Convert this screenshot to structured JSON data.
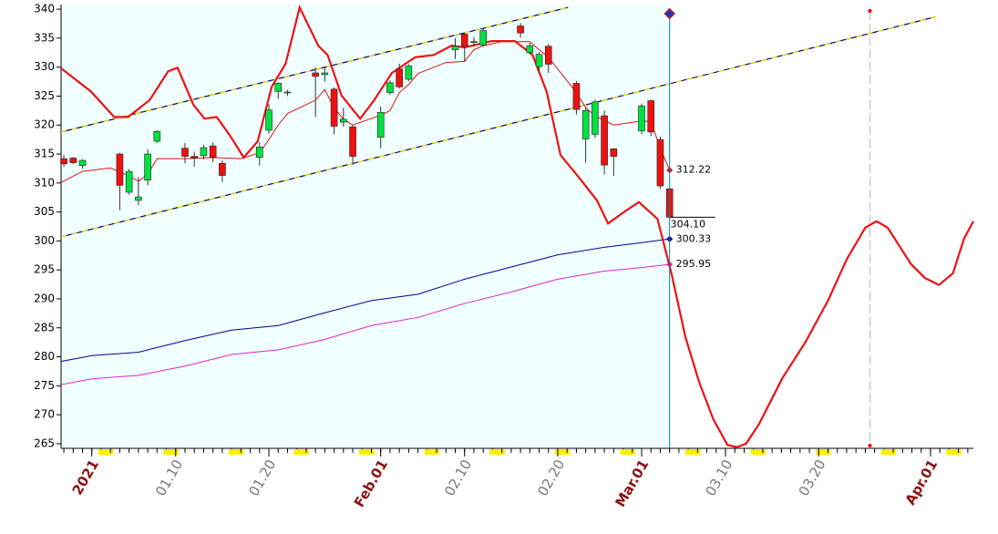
{
  "chart_data": {
    "type": "candlestick",
    "xlim": [
      -3.3,
      94.6
    ],
    "ylim": [
      264.2,
      340.8
    ],
    "yticks": [
      265,
      270,
      275,
      280,
      285,
      290,
      295,
      300,
      305,
      310,
      315,
      320,
      325,
      330,
      335,
      340
    ],
    "xticks": [
      {
        "value": 0,
        "label": "2021"
      },
      {
        "value": 9,
        "label": "01.10"
      },
      {
        "value": 19,
        "label": "01.20"
      },
      {
        "value": 31,
        "label": "Feb.01"
      },
      {
        "value": 40,
        "label": "02.10"
      },
      {
        "value": 50,
        "label": "02.20"
      },
      {
        "value": 59,
        "label": "Mar.01"
      },
      {
        "value": 68,
        "label": "03.10"
      },
      {
        "value": 78,
        "label": "03.20"
      },
      {
        "value": 90,
        "label": "Apr.01"
      }
    ],
    "candles": {
      "x": [
        -3,
        -2,
        -1,
        3,
        4,
        5,
        6,
        7,
        10,
        11,
        12,
        13,
        14,
        18,
        19,
        20,
        21,
        24,
        25,
        26,
        27,
        28,
        31,
        32,
        33,
        34,
        39,
        40,
        41,
        42,
        46,
        47,
        48,
        49,
        52,
        53,
        54,
        55,
        56,
        59,
        60,
        61,
        62
      ],
      "open": [
        314.2,
        314.3,
        313.0,
        315.0,
        308.4,
        307.0,
        310.5,
        317.2,
        316.0,
        314.6,
        314.7,
        316.4,
        313.4,
        314.4,
        319.1,
        325.8,
        325.6,
        329.0,
        328.7,
        326.2,
        320.5,
        319.7,
        317.9,
        325.6,
        329.7,
        327.9,
        333.0,
        335.7,
        334.3,
        333.8,
        337.1,
        332.5,
        330.1,
        333.6,
        327.2,
        317.6,
        318.4,
        321.6,
        315.9,
        319.0,
        324.2,
        317.5,
        309.0
      ],
      "high": [
        314.8,
        314.5,
        314.1,
        315.2,
        312.4,
        311.0,
        315.8,
        319.1,
        316.9,
        315.4,
        316.6,
        317.0,
        313.9,
        317.0,
        323.6,
        327.4,
        326.1,
        330.0,
        330.0,
        326.5,
        323.0,
        320.0,
        323.2,
        327.7,
        330.6,
        330.5,
        335.0,
        335.9,
        335.2,
        336.6,
        337.6,
        334.2,
        332.6,
        334.0,
        327.6,
        323.0,
        324.4,
        322.5,
        316.0,
        323.7,
        324.4,
        318.0,
        309.3
      ],
      "low": [
        312.8,
        313.3,
        312.5,
        305.3,
        308.0,
        306.2,
        309.6,
        316.9,
        313.4,
        312.8,
        314.1,
        313.6,
        310.2,
        313.0,
        318.5,
        324.5,
        325.0,
        321.4,
        327.5,
        318.4,
        319.7,
        313.1,
        316.0,
        325.2,
        326.3,
        327.6,
        331.4,
        330.9,
        333.5,
        333.6,
        335.1,
        332.2,
        329.3,
        329.0,
        321.8,
        313.5,
        317.8,
        311.5,
        311.2,
        318.4,
        318.1,
        309.0,
        303.9
      ],
      "close": [
        313.3,
        313.5,
        313.9,
        309.6,
        312.0,
        307.6,
        315.0,
        318.9,
        314.6,
        314.3,
        316.1,
        314.4,
        311.3,
        316.2,
        322.6,
        327.2,
        325.7,
        328.4,
        329.0,
        319.8,
        321.0,
        314.6,
        322.2,
        327.3,
        326.6,
        330.2,
        333.6,
        333.6,
        334.4,
        336.3,
        335.9,
        333.7,
        332.2,
        330.5,
        322.7,
        322.5,
        324.0,
        313.1,
        314.6,
        323.3,
        318.8,
        309.5,
        304.1
      ],
      "up_color": "#00e040",
      "down_color": "#ee1111",
      "last_close_label": "304.10"
    },
    "lines": [
      {
        "color": "#000099",
        "width": 1,
        "end_label": true,
        "x": [
          -3.3,
          0,
          5,
          10,
          15,
          20,
          25,
          30,
          35,
          40,
          45,
          50,
          55,
          59,
          62
        ],
        "values": [
          279.2,
          280.2,
          280.8,
          282.8,
          284.6,
          285.4,
          287.6,
          289.7,
          290.8,
          293.4,
          295.5,
          297.6,
          298.9,
          299.7,
          300.33
        ]
      },
      {
        "color": "#dd22cc",
        "width": 1,
        "end_label": true,
        "x": [
          -3.3,
          0,
          5,
          10,
          15,
          20,
          25,
          30,
          35,
          40,
          45,
          50,
          55,
          59,
          62
        ],
        "values": [
          275.2,
          276.2,
          276.8,
          278.4,
          280.4,
          281.2,
          283.0,
          285.4,
          286.8,
          289.2,
          291.2,
          293.4,
          294.8,
          295.4,
          295.95
        ]
      },
      {
        "color": "#dd1111",
        "width": 1,
        "end_label": true,
        "x": [
          -3.3,
          -1,
          2,
          4,
          5,
          6,
          7,
          10,
          13,
          16,
          18,
          19,
          20,
          21,
          24,
          25,
          26,
          27,
          28,
          31,
          32,
          33,
          34,
          35,
          38,
          40,
          41,
          42,
          44,
          47,
          48,
          49,
          52,
          53,
          54,
          56,
          59,
          60,
          61,
          62
        ],
        "values": [
          310.1,
          312.0,
          312.6,
          311.2,
          310.3,
          311.5,
          314.2,
          314.2,
          314.4,
          314.2,
          315.2,
          317.5,
          320.0,
          322.0,
          324.3,
          326.1,
          323.0,
          321.0,
          320.0,
          321.7,
          322.5,
          325.6,
          327.0,
          328.9,
          330.8,
          331.0,
          333.0,
          333.7,
          334.4,
          334.4,
          333.0,
          331.7,
          325.6,
          323.0,
          321.6,
          320.0,
          320.7,
          320.6,
          316.0,
          312.22
        ]
      },
      {
        "color": "#ee1111",
        "width": 2.2,
        "end_label": false,
        "x": [
          -3.3,
          -0.1,
          2.4,
          3.9,
          6.2,
          8.2,
          9.2,
          10.9,
          12.1,
          13.4,
          14.9,
          16.3,
          17.8,
          19.3,
          20.8,
          22.3,
          24.3,
          25.3,
          26.8,
          28.8,
          30.3,
          32.2,
          34.7,
          36.7,
          38.6,
          40.0,
          42.9,
          45.4,
          47.3,
          48.8,
          50.3,
          52.3,
          54.2,
          55.4,
          57.2,
          58.7,
          60.7,
          62.2,
          63.7,
          65.2,
          66.7,
          68.2,
          69.2,
          70.2,
          71.6,
          74.1,
          76.6,
          79.0,
          81.0,
          83.0,
          84.2,
          85.4,
          87.9,
          89.4,
          90.9,
          92.4,
          93.6,
          94.6
        ],
        "values": [
          329.8,
          325.8,
          321.4,
          321.4,
          324.3,
          329.3,
          329.9,
          323.5,
          321.1,
          321.4,
          318.0,
          314.4,
          317.2,
          326.6,
          330.6,
          340.3,
          333.7,
          332.1,
          325.1,
          321.1,
          324.3,
          329.0,
          331.7,
          332.1,
          333.7,
          333.4,
          334.5,
          334.5,
          332.1,
          325.8,
          314.8,
          310.9,
          307.0,
          303.0,
          305.1,
          306.7,
          303.8,
          294.4,
          283.4,
          275.5,
          269.2,
          264.8,
          264.4,
          265.0,
          268.4,
          276.3,
          282.6,
          289.7,
          296.8,
          302.3,
          303.4,
          302.3,
          296.0,
          293.6,
          292.4,
          294.4,
          300.4,
          303.4
        ]
      }
    ],
    "trendlines": [
      {
        "x": [
          -3.3,
          51.1
        ],
        "values": [
          318.8,
          340.3
        ]
      },
      {
        "x": [
          -3.3,
          90.6
        ],
        "values": [
          300.7,
          338.7
        ]
      }
    ],
    "today": 62,
    "projection_marker": 83.5
  }
}
